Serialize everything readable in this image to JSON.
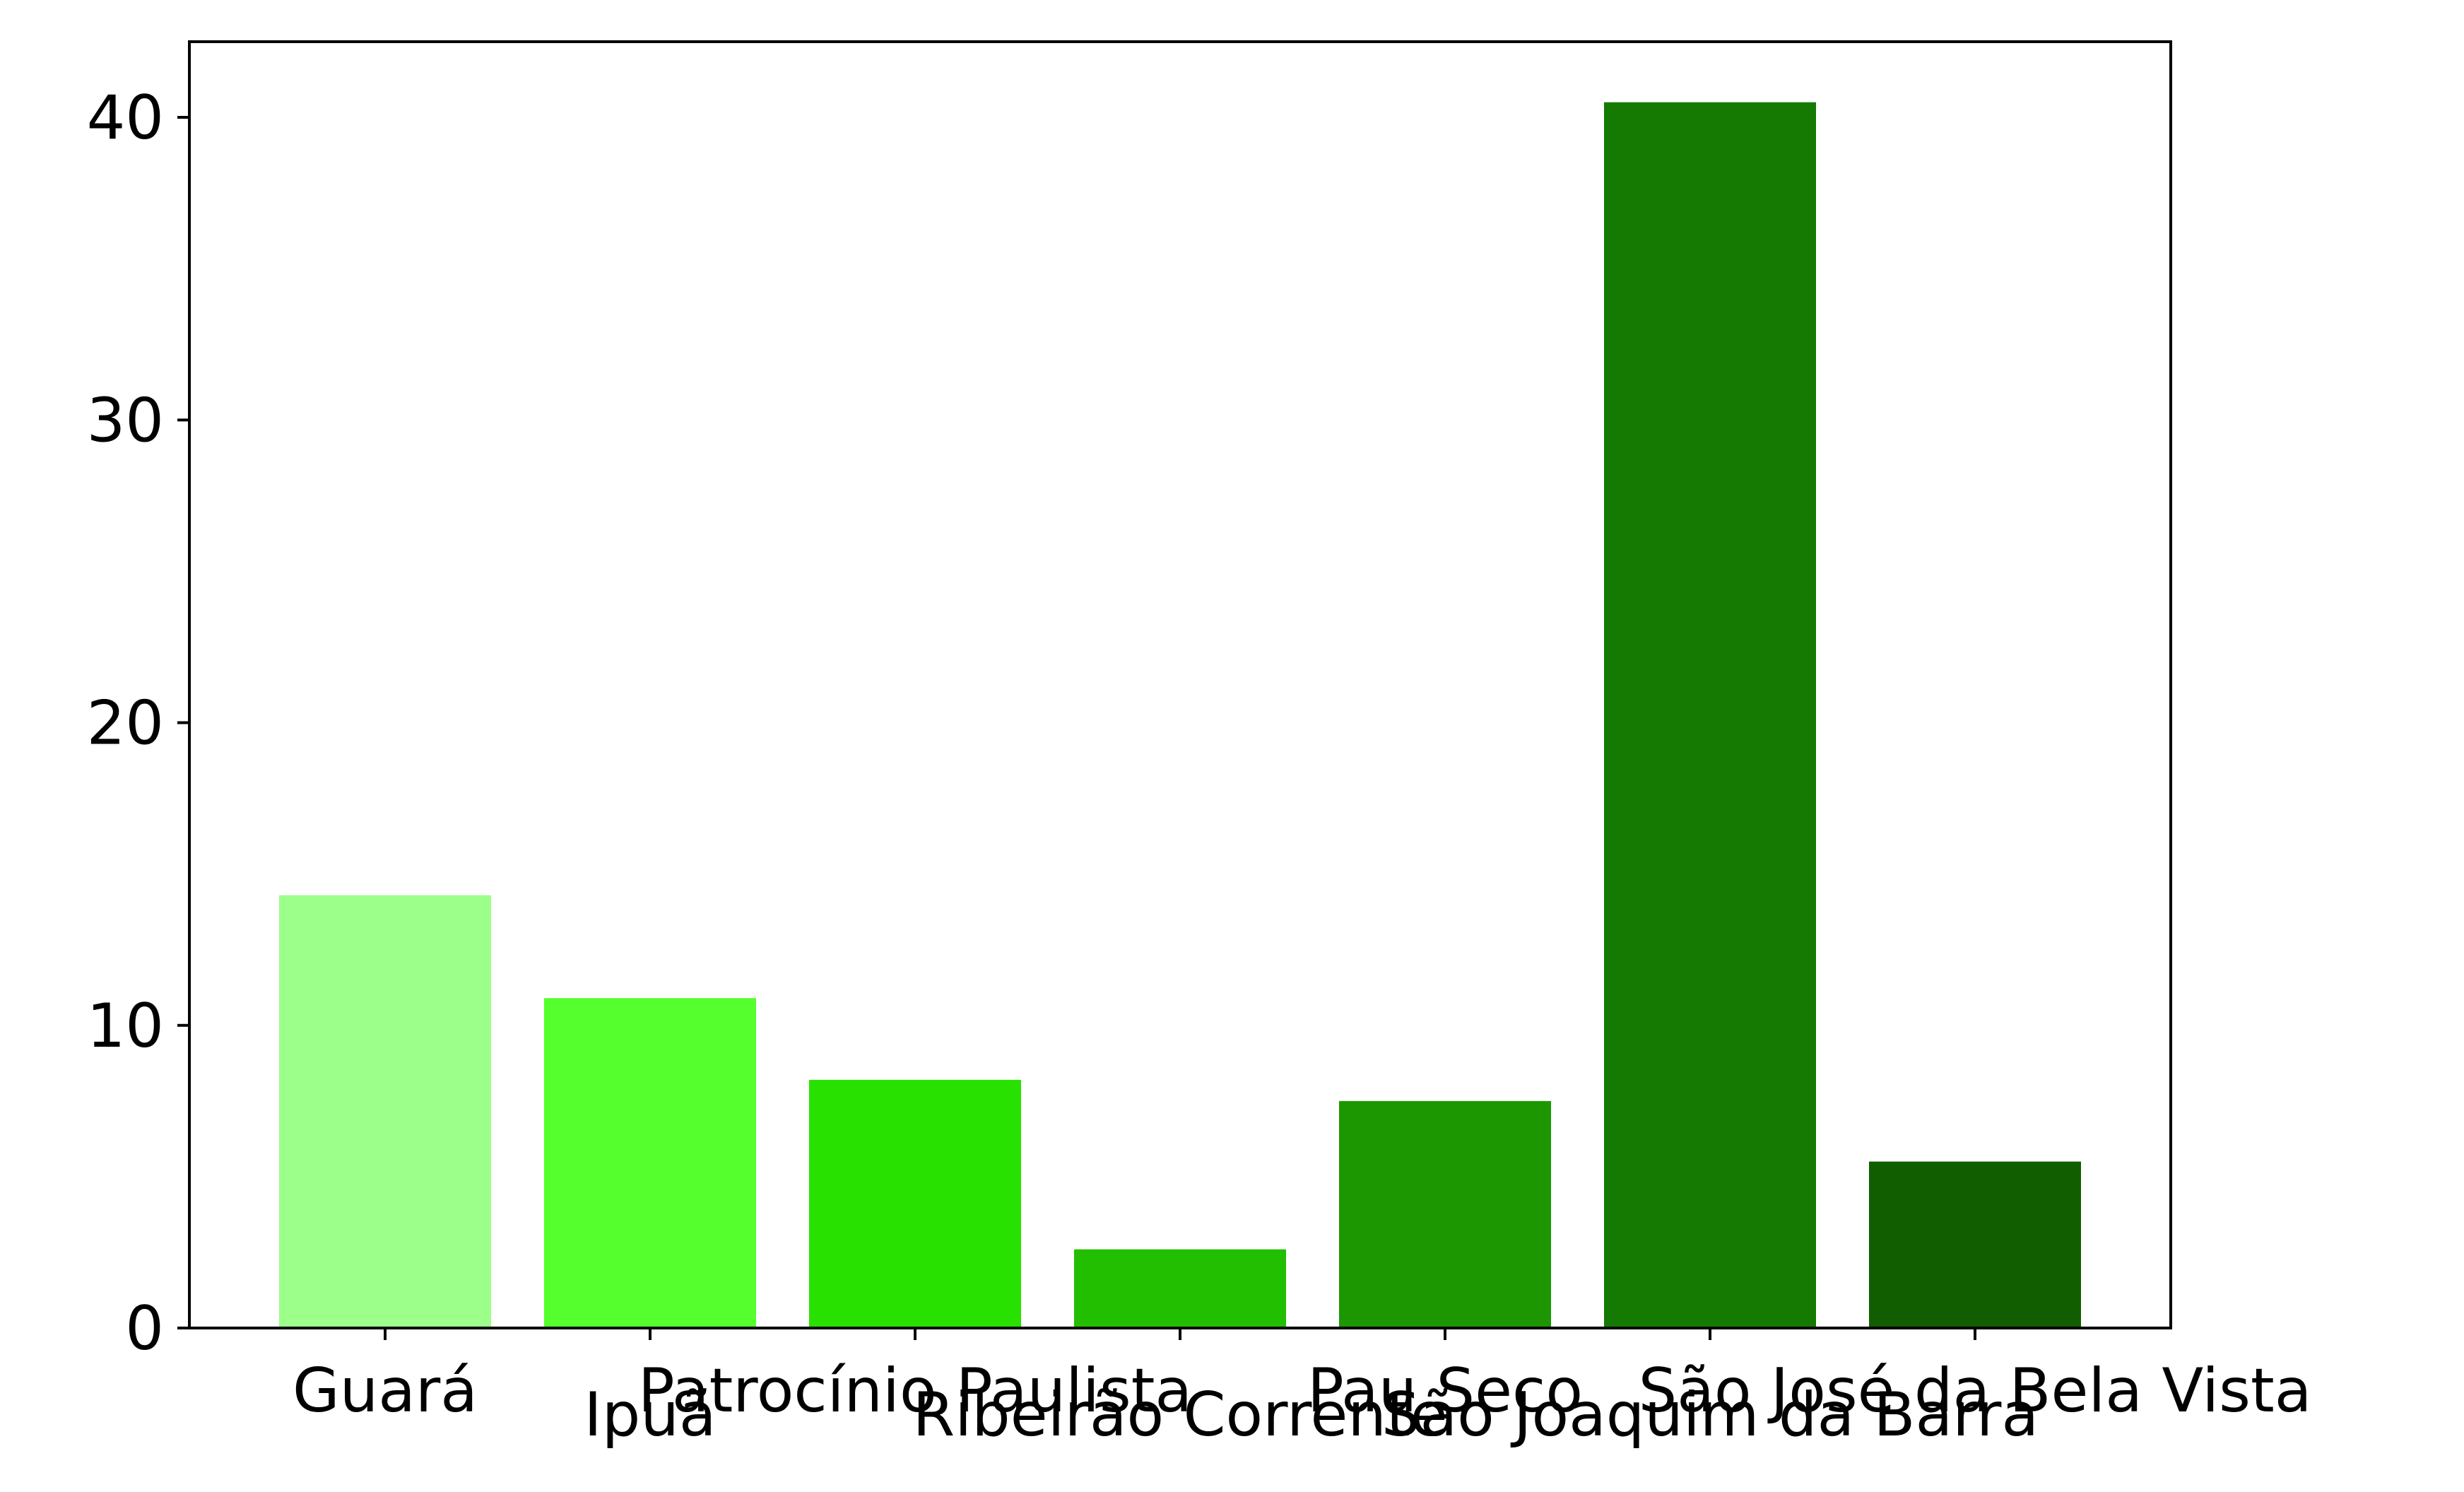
{
  "chart_data": {
    "type": "bar",
    "categories": [
      "Guará",
      "Ipuã",
      "Patrocínio Paulista",
      "Ribeirão Corrente",
      "Pau Seco",
      "São Joaquim da Barra",
      "São José da Bela Vista"
    ],
    "values": [
      14.3,
      10.9,
      8.2,
      2.6,
      7.5,
      40.5,
      5.5
    ],
    "colors": [
      "#9cff8a",
      "#55ff2e",
      "#29e100",
      "#22bf00",
      "#1c9702",
      "#157a01",
      "#115e00"
    ],
    "y_ticks": [
      0,
      10,
      20,
      30,
      40
    ],
    "ylim": [
      0,
      42.5
    ],
    "title": "",
    "xlabel": "",
    "ylabel": "",
    "grid": false,
    "legend": "none"
  }
}
